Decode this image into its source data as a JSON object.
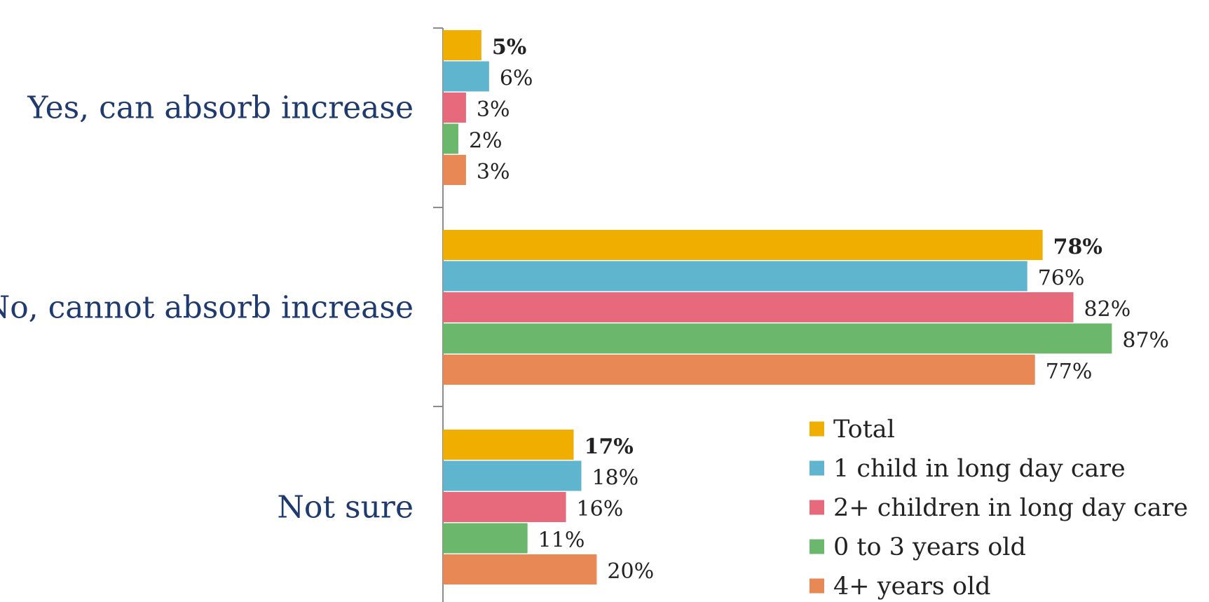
{
  "chart_data": {
    "type": "bar",
    "orientation": "horizontal",
    "categories": [
      "Yes, can absorb increase",
      "No, cannot absorb increase",
      "Not sure"
    ],
    "series": [
      {
        "name": "Total",
        "color": "#F0AE00",
        "values": [
          5,
          78,
          17
        ],
        "bold_labels": true
      },
      {
        "name": "1 child in long day care",
        "color": "#5FB5CD",
        "values": [
          6,
          76,
          18
        ],
        "bold_labels": false
      },
      {
        "name": "2+ children in long day care",
        "color": "#E66A7C",
        "values": [
          3,
          82,
          16
        ],
        "bold_labels": false
      },
      {
        "name": "0 to 3 years old",
        "color": "#6BB86D",
        "values": [
          2,
          87,
          11
        ],
        "bold_labels": false
      },
      {
        "name": "4+ years old",
        "color": "#E88955",
        "values": [
          3,
          77,
          20
        ],
        "bold_labels": false
      }
    ],
    "value_suffix": "%",
    "xlim": [
      0,
      100
    ],
    "legend_position": "bottom-right",
    "grid": false
  }
}
